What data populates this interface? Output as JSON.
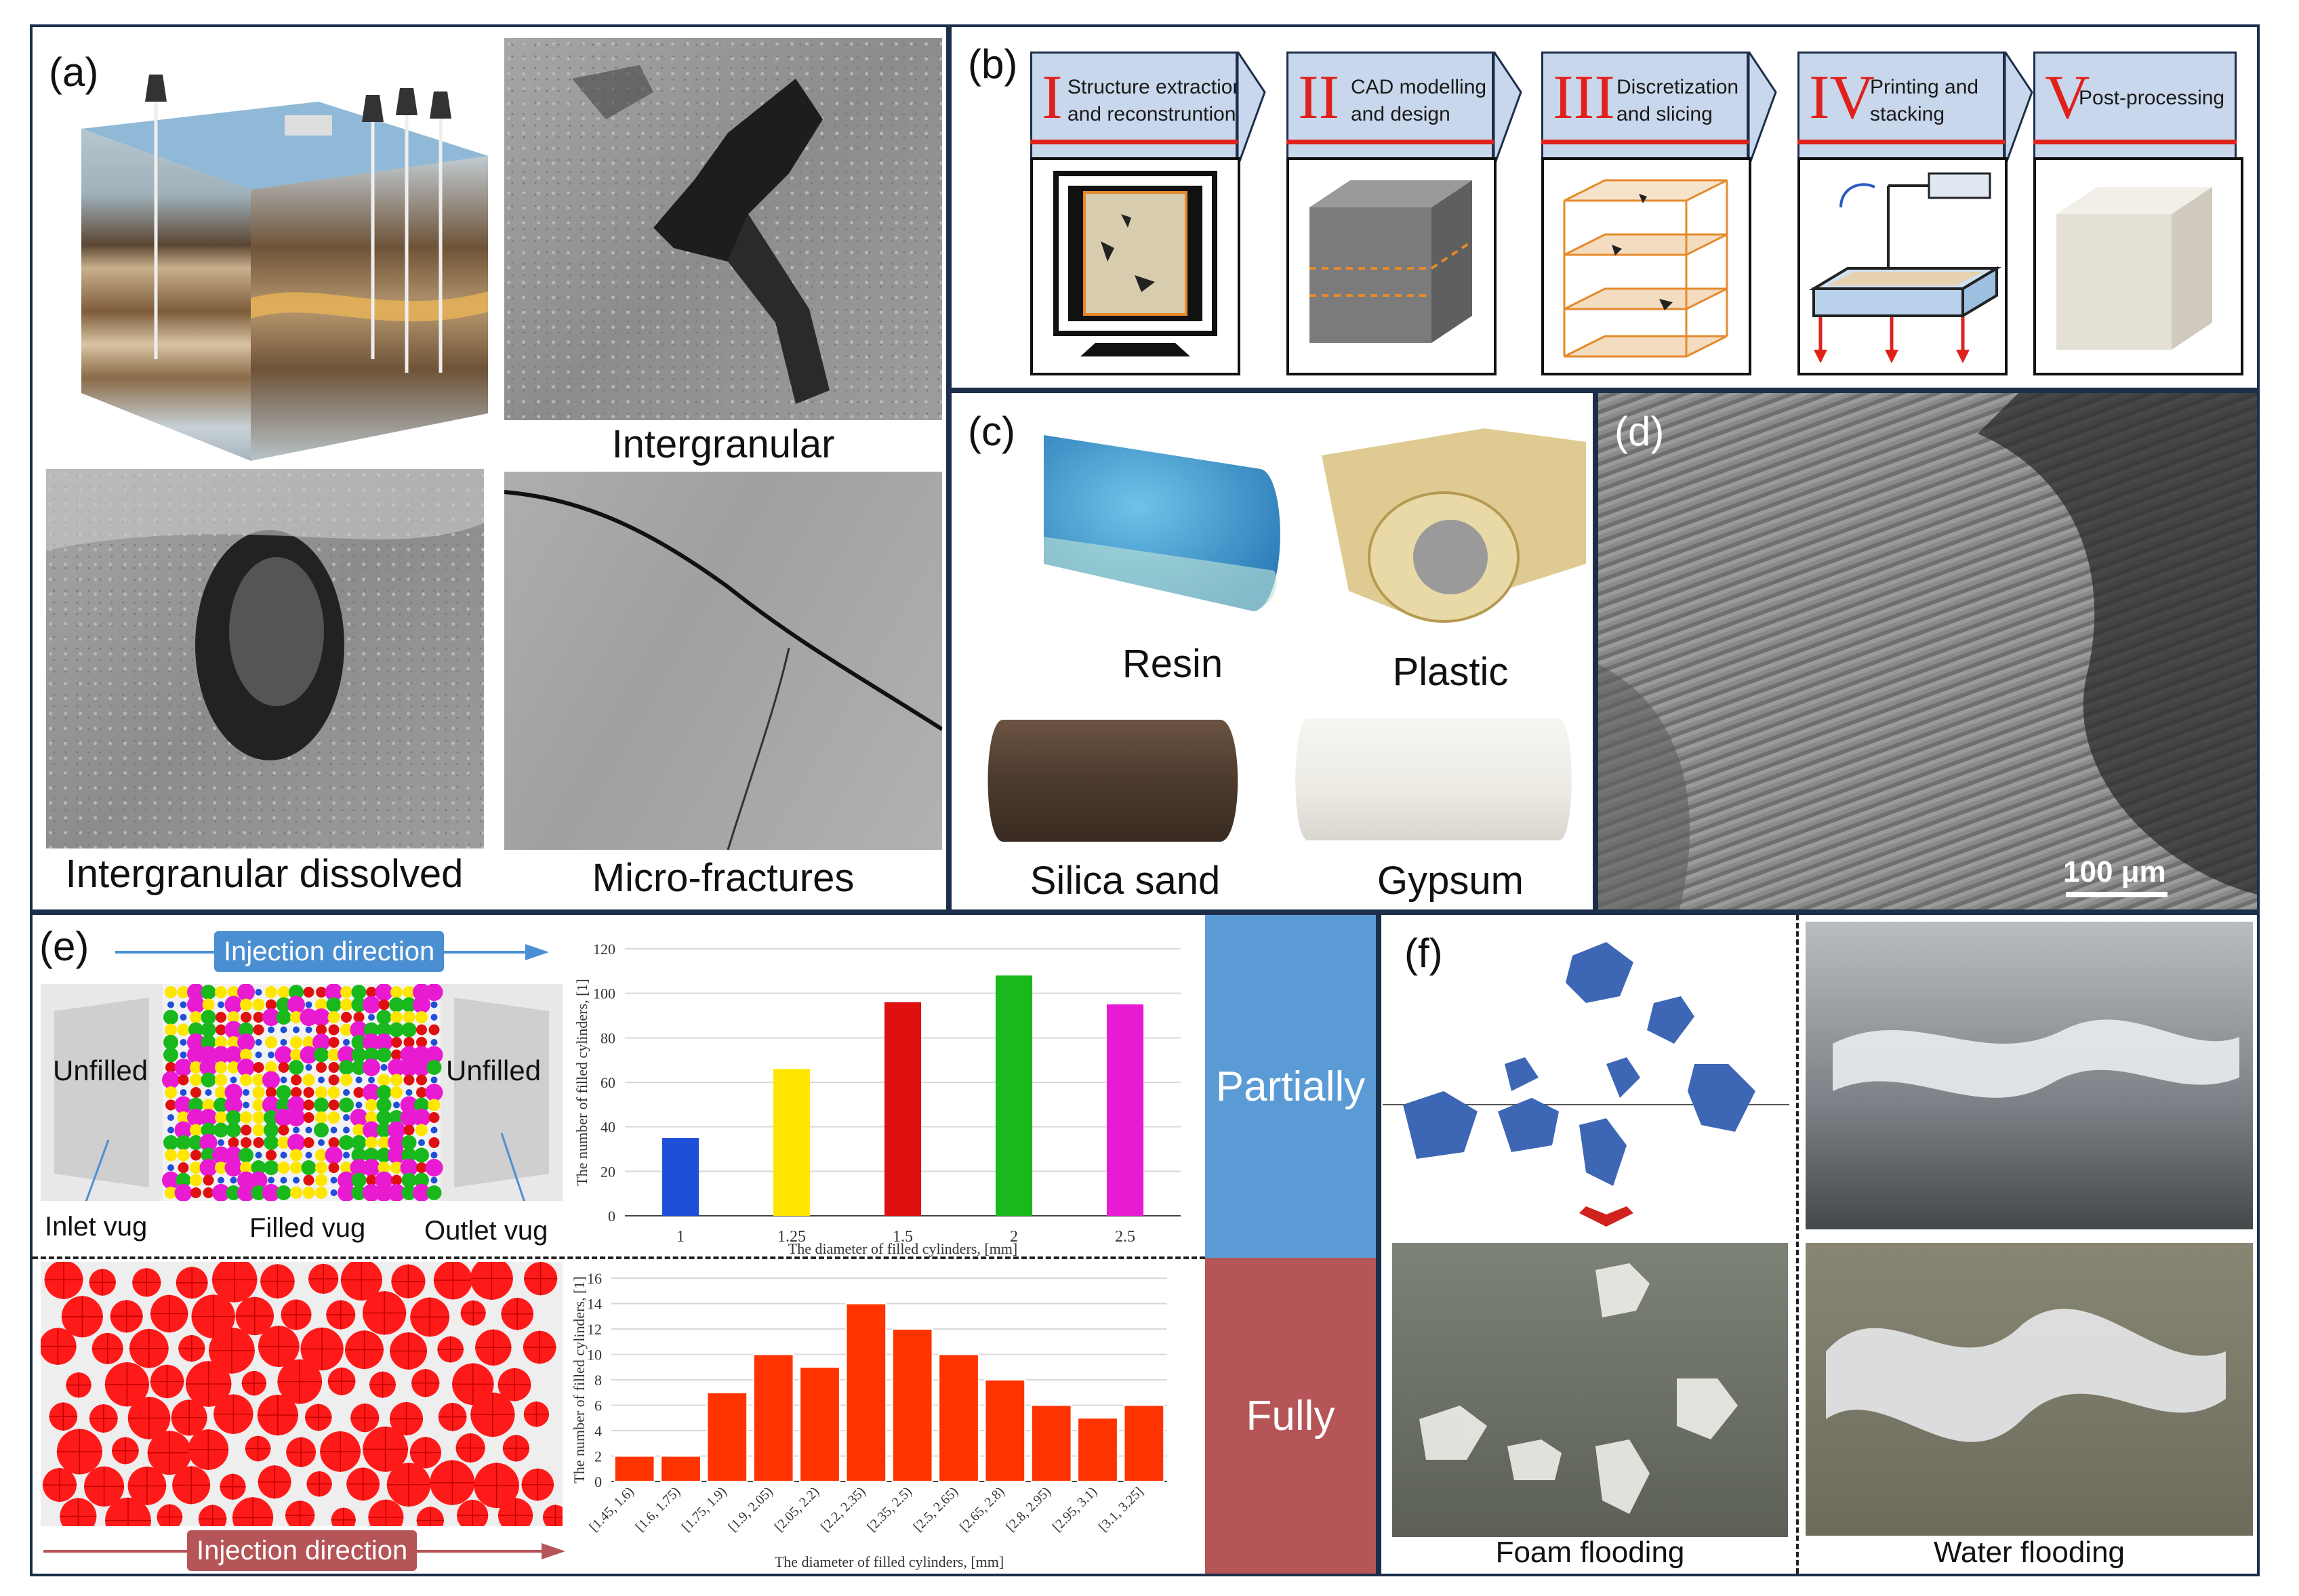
{
  "panels": {
    "a": {
      "label": "(a)",
      "captions": [
        "Intergranular",
        "Intergranular dissolved",
        "Micro-fractures"
      ]
    },
    "b": {
      "label": "(b)",
      "steps": [
        {
          "roman": "I",
          "line1": "Structure extraction",
          "line2": "and reconstruntion"
        },
        {
          "roman": "II",
          "line1": "CAD modelling",
          "line2": "and design"
        },
        {
          "roman": "III",
          "line1": "Discretization",
          "line2": "and slicing"
        },
        {
          "roman": "IV",
          "line1": "Printing and",
          "line2": "stacking"
        },
        {
          "roman": "V",
          "line1": "Post-processing",
          "line2": ""
        }
      ]
    },
    "c": {
      "label": "(c)",
      "materials": [
        "Resin",
        "Plastic",
        "Silica sand",
        "Gypsum"
      ]
    },
    "d": {
      "label": "(d)",
      "scale_bar": "100 μm"
    },
    "e": {
      "label": "(e)",
      "injection_top": "Injection direction",
      "injection_bottom": "Injection direction",
      "unfilled_left": "Unfilled",
      "unfilled_right": "Unfilled",
      "inlet": "Inlet vug",
      "filled": "Filled vug",
      "outlet": "Outlet vug",
      "band_partial": "Partially",
      "band_full": "Fully"
    },
    "f": {
      "label": "(f)",
      "foam": "Foam flooding",
      "water": "Water flooding"
    }
  },
  "colors": {
    "frame": "#1c2e4a",
    "accent_red": "#e0211b",
    "step_fill": "#c9d7ec",
    "partial_band": "#5b9bd5",
    "full_band": "#b55557",
    "injection_top": "#4a8fd2",
    "injection_bottom": "#b55557"
  },
  "chart_data": [
    {
      "type": "bar",
      "categories": [
        "1",
        "1.25",
        "1.5",
        "2",
        "2.5"
      ],
      "values": [
        35,
        66,
        96,
        108,
        95
      ],
      "colors": [
        "#1f4fd8",
        "#ffe600",
        "#e01010",
        "#19b81c",
        "#e81ad2"
      ],
      "xlabel": "The diameter of filled cylinders, [mm]",
      "ylabel": "The number of filled cylinders, [1]",
      "ylim": [
        0,
        120
      ],
      "yticks": [
        0,
        20,
        40,
        60,
        80,
        100,
        120
      ],
      "grid": true
    },
    {
      "type": "bar",
      "categories": [
        "[1.45, 1.6)",
        "[1.6, 1.75)",
        "[1.75, 1.9)",
        "[1.9, 2.05)",
        "[2.05, 2.2)",
        "[2.2, 2.35)",
        "[2.35, 2.5)",
        "[2.5, 2.65)",
        "[2.65, 2.8)",
        "[2.8, 2.95)",
        "[2.95, 3.1)",
        "[3.1, 3.25]"
      ],
      "values": [
        2,
        2,
        7,
        10,
        9,
        14,
        12,
        10,
        8,
        6,
        5,
        6
      ],
      "colors": [
        "#ff3300"
      ],
      "xlabel": "The diameter of filled cylinders, [mm]",
      "ylabel": "The number of filled cylinders, [1]",
      "ylim": [
        0,
        16
      ],
      "yticks": [
        0,
        2,
        4,
        6,
        8,
        10,
        12,
        14,
        16
      ],
      "grid": true
    }
  ]
}
